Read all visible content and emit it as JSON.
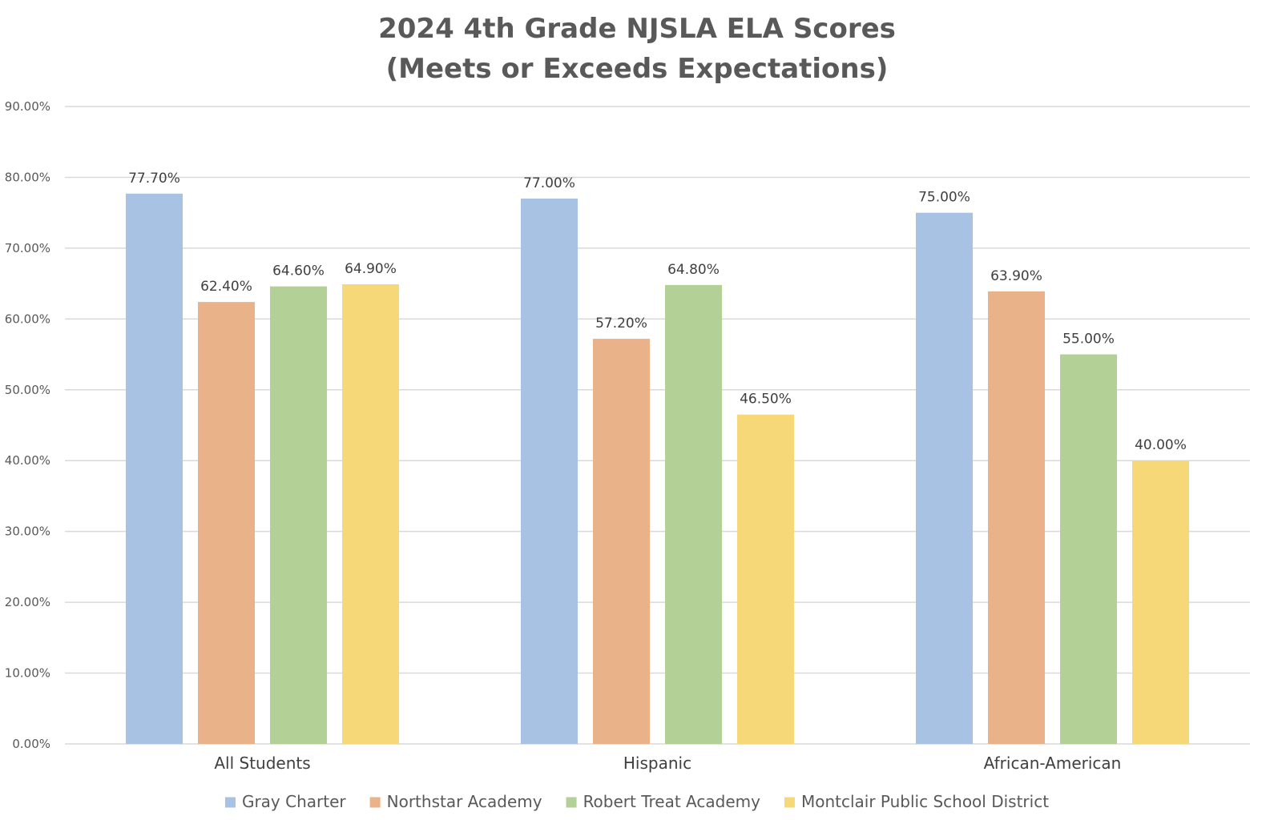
{
  "chart_data": {
    "type": "bar",
    "title_lines": [
      "2024 4th Grade NJSLA ELA Scores",
      "(Meets or Exceeds Expectations)"
    ],
    "xlabel": "",
    "ylabel": "",
    "ylim": [
      0,
      90
    ],
    "yticks": [
      0,
      10,
      20,
      30,
      40,
      50,
      60,
      70,
      80,
      90
    ],
    "ytick_labels": [
      "0.00%",
      "10.00%",
      "20.00%",
      "30.00%",
      "40.00%",
      "50.00%",
      "60.00%",
      "70.00%",
      "80.00%",
      "90.00%"
    ],
    "categories": [
      "All Students",
      "Hispanic",
      "African-American"
    ],
    "series": [
      {
        "name": "Gray Charter",
        "color": "#a7c2e2",
        "values": [
          77.7,
          77.0,
          75.0
        ],
        "labels": [
          "77.70%",
          "77.00%",
          "75.00%"
        ]
      },
      {
        "name": "Northstar Academy",
        "color": "#e9b289",
        "values": [
          62.4,
          57.2,
          63.9
        ],
        "labels": [
          "62.40%",
          "57.20%",
          "63.90%"
        ]
      },
      {
        "name": "Robert Treat Academy",
        "color": "#b3d196",
        "values": [
          64.6,
          64.8,
          55.0
        ],
        "labels": [
          "64.60%",
          "64.80%",
          "55.00%"
        ]
      },
      {
        "name": "Montclair Public School District",
        "color": "#f7d878",
        "values": [
          64.9,
          46.5,
          40.0
        ],
        "labels": [
          "64.90%",
          "46.50%",
          "40.00%"
        ]
      }
    ],
    "grid": true,
    "legend_position": "bottom"
  }
}
